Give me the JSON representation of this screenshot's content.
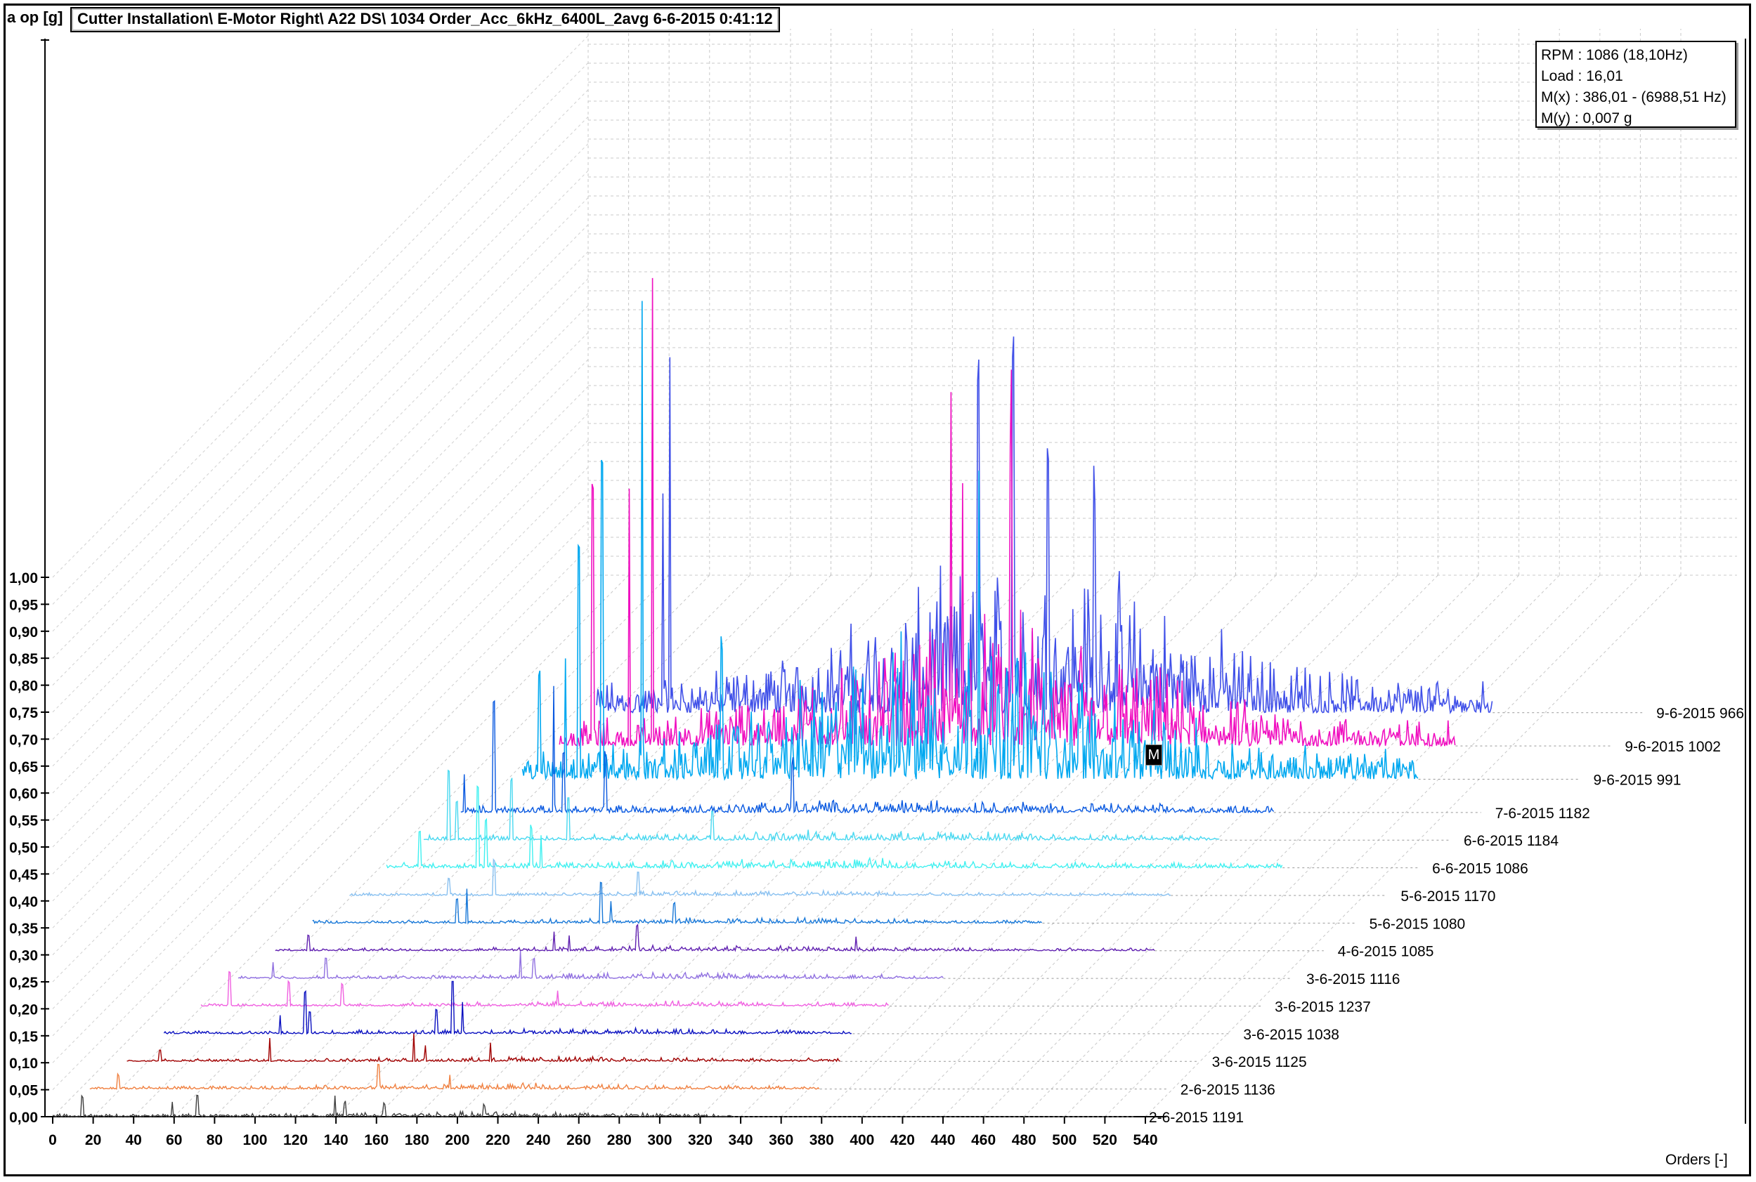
{
  "header": {
    "y_unit": "a op [g]",
    "title": "Cutter Installation\\ E-Motor Right\\ A22 DS\\ 1034 Order_Acc_6kHz_6400L_2avg 6-6-2015 0:41:12"
  },
  "info_box": {
    "rpm": "RPM : 1086 (18,10Hz)",
    "load": "Load : 16,01",
    "mx": "M(x) : 386,01 - (6988,51 Hz)",
    "my": "M(y) : 0,007 g"
  },
  "marker": {
    "label": "M"
  },
  "chart_data": {
    "type": "line",
    "style": "waterfall",
    "xlabel": "Orders [-]",
    "ylabel": "a op [g]",
    "xlim": [
      0,
      540
    ],
    "ylim": [
      0,
      1.0
    ],
    "x_ticks": [
      "0",
      "20",
      "40",
      "60",
      "80",
      "100",
      "120",
      "140",
      "160",
      "180",
      "200",
      "220",
      "240",
      "260",
      "280",
      "300",
      "320",
      "340",
      "360",
      "380",
      "400",
      "420",
      "440",
      "460",
      "480",
      "500",
      "520",
      "540"
    ],
    "y_ticks": [
      "0,00",
      "0,05",
      "0,10",
      "0,15",
      "0,20",
      "0,25",
      "0,30",
      "0,35",
      "0,40",
      "0,45",
      "0,50",
      "0,55",
      "0,60",
      "0,65",
      "0,70",
      "0,75",
      "0,80",
      "0,85",
      "0,90",
      "0,95",
      "1,00"
    ],
    "grid": true,
    "series": [
      {
        "name": "2-6-2015 1191",
        "color": "#404040",
        "end_order": 410,
        "amp": 0.55,
        "peaks": [
          [
            18,
            0.45
          ],
          [
            72,
            0.35
          ],
          [
            87,
            0.5
          ],
          [
            170,
            0.45
          ],
          [
            176,
            0.3
          ],
          [
            200,
            0.25
          ],
          [
            260,
            0.2
          ]
        ]
      },
      {
        "name": "2-6-2015 1136",
        "color": "#f08040",
        "end_order": 440,
        "amp": 0.6,
        "peaks": [
          [
            17,
            0.3
          ],
          [
            174,
            0.55
          ],
          [
            217,
            0.3
          ]
        ]
      },
      {
        "name": "3-6-2015 1125",
        "color": "#a00000",
        "end_order": 430,
        "amp": 0.55,
        "peaks": [
          [
            20,
            0.25
          ],
          [
            86,
            0.55
          ],
          [
            173,
            0.65
          ],
          [
            180,
            0.35
          ],
          [
            219,
            0.4
          ]
        ]
      },
      {
        "name": "3-6-2015 1038",
        "color": "#0a10c0",
        "end_order": 415,
        "amp": 0.6,
        "peaks": [
          [
            70,
            0.4
          ],
          [
            85,
            0.95
          ],
          [
            88,
            0.5
          ],
          [
            164,
            0.55
          ],
          [
            174,
            1.2
          ],
          [
            180,
            0.75
          ]
        ]
      },
      {
        "name": "3-6-2015 1237",
        "color": "#f060e0",
        "end_order": 415,
        "amp": 0.55,
        "peaks": [
          [
            17,
            0.8
          ],
          [
            53,
            0.55
          ],
          [
            85,
            0.5
          ],
          [
            215,
            0.35
          ]
        ]
      },
      {
        "name": "3-6-2015 1116",
        "color": "#9070e0",
        "end_order": 425,
        "amp": 0.6,
        "peaks": [
          [
            21,
            0.35
          ],
          [
            53,
            0.45
          ],
          [
            170,
            0.55
          ],
          [
            178,
            0.45
          ]
        ]
      },
      {
        "name": "4-6-2015 1085",
        "color": "#6020b0",
        "end_order": 530,
        "amp": 0.55,
        "peaks": [
          [
            20,
            0.35
          ],
          [
            168,
            0.45
          ],
          [
            177,
            0.35
          ],
          [
            218,
            0.55
          ],
          [
            350,
            0.3
          ]
        ]
      },
      {
        "name": "5-6-2015 1080",
        "color": "#1878d8",
        "end_order": 440,
        "amp": 0.6,
        "peaks": [
          [
            87,
            0.55
          ],
          [
            93,
            0.8
          ],
          [
            174,
            0.95
          ],
          [
            180,
            0.5
          ],
          [
            218,
            0.45
          ]
        ]
      },
      {
        "name": "5-6-2015 1170",
        "color": "#88c0f0",
        "end_order": 495,
        "amp": 0.55,
        "peaks": [
          [
            60,
            0.4
          ],
          [
            87,
            0.8
          ],
          [
            174,
            0.55
          ]
        ]
      },
      {
        "name": "6-6-2015 1086",
        "color": "#40f0f0",
        "end_order": 540,
        "amp": 1.0,
        "peaks": [
          [
            20,
            0.8
          ],
          [
            55,
            1.9
          ],
          [
            60,
            1.1
          ],
          [
            87,
            0.9
          ],
          [
            93,
            0.7
          ]
        ]
      },
      {
        "name": "6-6-2015 1184",
        "color": "#48d8f0",
        "end_order": 480,
        "amp": 1.1,
        "peaks": [
          [
            15,
            1.6
          ],
          [
            20,
            0.9
          ],
          [
            53,
            1.4
          ],
          [
            87,
            1.0
          ],
          [
            174,
            0.6
          ]
        ]
      },
      {
        "name": "7-6-2015 1182",
        "color": "#0858e0",
        "end_order": 490,
        "amp": 1.5,
        "peaks": [
          [
            2,
            0.8
          ],
          [
            20,
            2.6
          ],
          [
            56,
            3.0
          ],
          [
            62,
            1.4
          ],
          [
            87,
            1.3
          ],
          [
            200,
            1.1
          ]
        ]
      },
      {
        "name": "9-6-2015 991",
        "color": "#00a8f0",
        "end_order": 540,
        "amp": 6.5,
        "peaks": [
          [
            10,
            2.0
          ],
          [
            26,
            2.7
          ],
          [
            34,
            5.5
          ],
          [
            48,
            7.4
          ],
          [
            72,
            11.0
          ],
          [
            120,
            3.0
          ],
          [
            275,
            7.0
          ]
        ]
      },
      {
        "name": "9-6-2015 1002",
        "color": "#f010c0",
        "end_order": 540,
        "amp": 5.5,
        "peaks": [
          [
            20,
            6.0
          ],
          [
            42,
            5.5
          ],
          [
            56,
            10.6
          ],
          [
            236,
            8.0
          ],
          [
            243,
            6.2
          ],
          [
            272,
            7.0
          ]
        ]
      },
      {
        "name": "9-6-2015 966",
        "color": "#4050e8",
        "end_order": 540,
        "amp": 6.8,
        "peaks": [
          [
            40,
            5.2
          ],
          [
            44,
            8.0
          ],
          [
            230,
            7.5
          ],
          [
            251,
            8.4
          ],
          [
            272,
            6.0
          ],
          [
            300,
            4.0
          ]
        ]
      }
    ]
  }
}
